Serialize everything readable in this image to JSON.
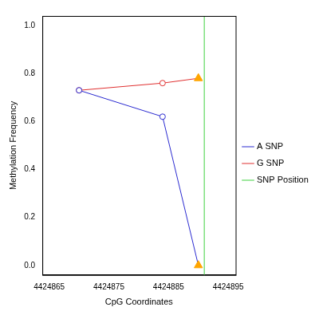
{
  "chart_data": {
    "type": "line",
    "x_label": "CpG Coordinates",
    "y_label": "Methylation Frequency",
    "series": [
      {
        "name": "A SNP",
        "color": "#2a2ad0",
        "marker": "circle",
        "x": [
          4424870,
          4424884,
          4424890
        ],
        "values": [
          0.73,
          0.62,
          0.0
        ]
      },
      {
        "name": "G SNP",
        "color": "#e03030",
        "marker": "circle",
        "x": [
          4424870,
          4424884,
          4424890
        ],
        "values": [
          0.73,
          0.76,
          0.78
        ]
      },
      {
        "type": "scatter",
        "color": "#ffa500",
        "marker": "triangle",
        "x": [
          4424890,
          4424890
        ],
        "values": [
          0.78,
          0.0
        ]
      },
      {
        "name": "SNP Position",
        "type": "vline",
        "color": "#7ee07e",
        "x": [
          4424891
        ]
      }
    ],
    "xlim": [
      4424863.85,
      4424896.25
    ],
    "xticks": [
      4424865,
      4424875,
      4424885,
      4424895
    ],
    "ylim": [
      -0.04,
      1.04
    ],
    "yticks": [
      {
        "value": 0,
        "label": "0.0"
      },
      {
        "value": 0.2,
        "label": "0.2"
      },
      {
        "value": 0.4,
        "label": "0.4"
      },
      {
        "value": 0.6,
        "label": "0.6"
      },
      {
        "value": 0.8,
        "label": "0.8"
      },
      {
        "value": 1,
        "label": "1.0"
      }
    ],
    "grid": false,
    "legend": "right"
  }
}
